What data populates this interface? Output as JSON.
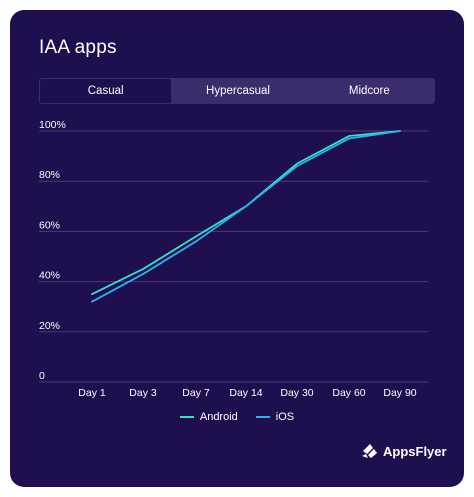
{
  "title": "IAA apps",
  "tabs": [
    {
      "label": "Casual",
      "active": true
    },
    {
      "label": "Hypercasual",
      "active": false
    },
    {
      "label": "Midcore",
      "active": false
    }
  ],
  "brand": {
    "name": "AppsFlyer"
  },
  "colors": {
    "background": "#1f0f4e",
    "tab_bar": "#3b2d6b",
    "android": "#2ee6c6",
    "ios": "#2fb2f0",
    "grid": "#4a3d78"
  },
  "chart_data": {
    "type": "line",
    "categories": [
      "Day 1",
      "Day 3",
      "Day 7",
      "Day 14",
      "Day 30",
      "Day 60",
      "Day 90"
    ],
    "y_ticks": [
      "0",
      "20%",
      "40%",
      "60%",
      "80%",
      "100%"
    ],
    "ylim": [
      0,
      100
    ],
    "grid": true,
    "legend_position": "bottom",
    "series": [
      {
        "name": "Android",
        "color": "#2ee6c6",
        "values": [
          35,
          45,
          58,
          70,
          87,
          98,
          100
        ]
      },
      {
        "name": "iOS",
        "color": "#2fb2f0",
        "values": [
          32,
          43,
          56,
          70,
          86,
          97,
          100
        ]
      }
    ]
  }
}
